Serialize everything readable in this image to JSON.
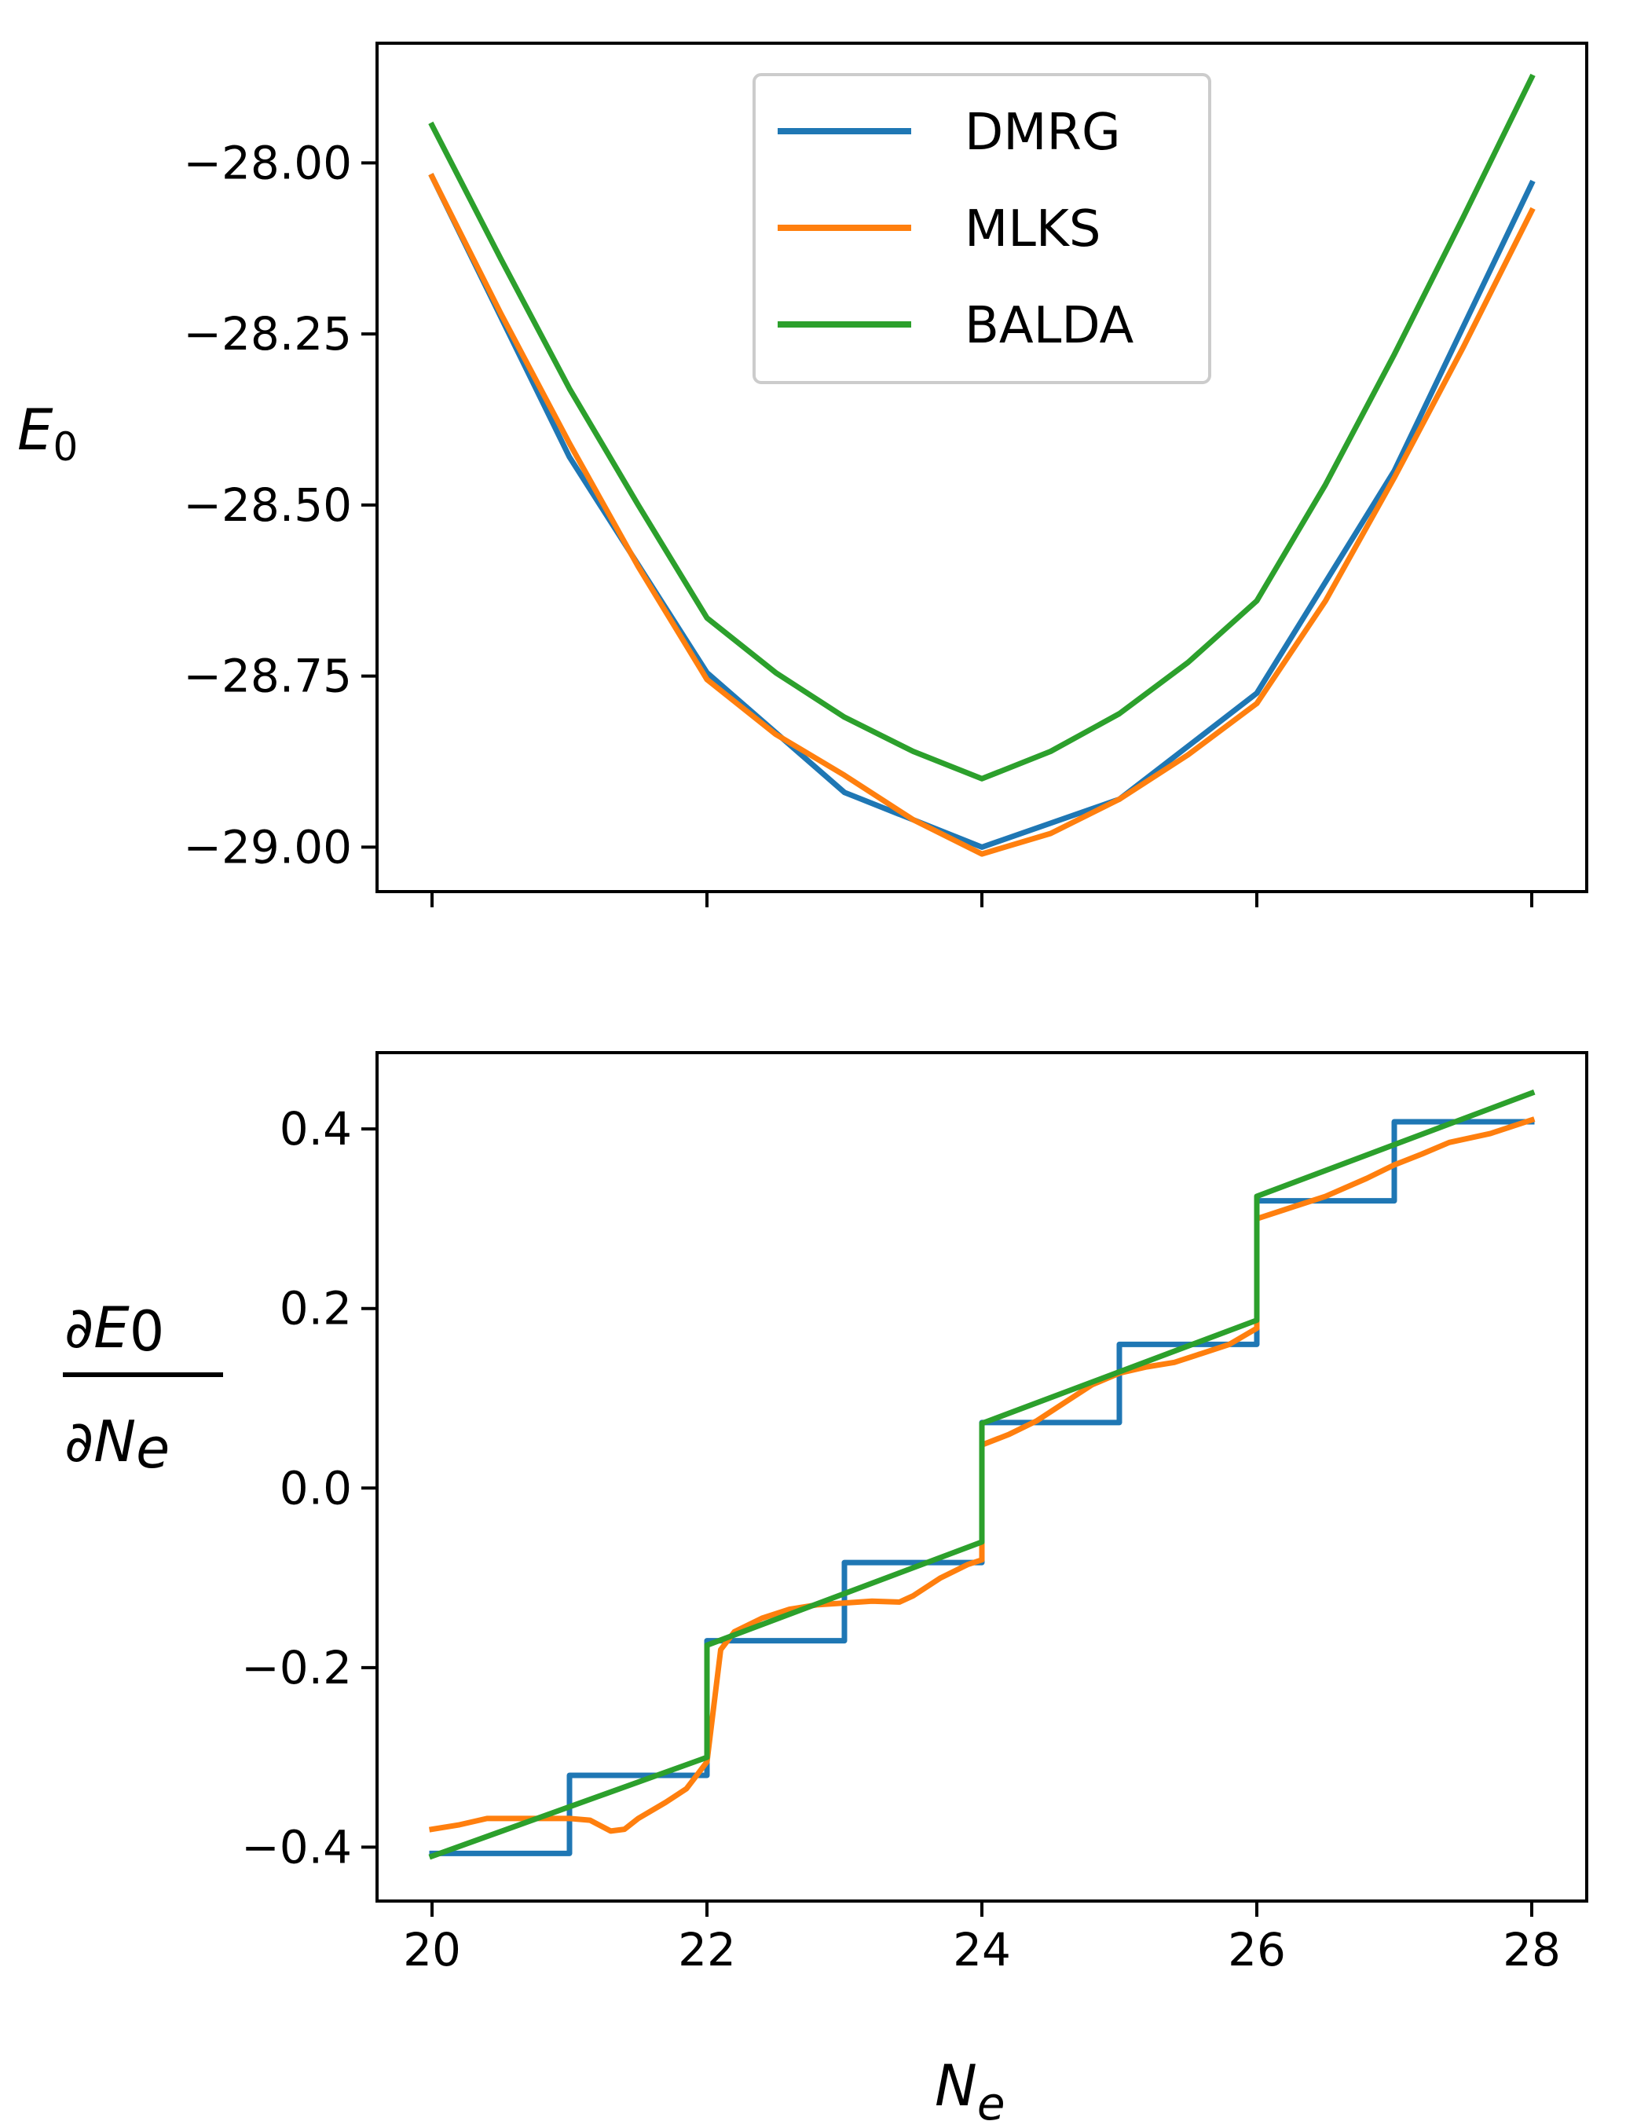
{
  "colors": {
    "DMRG": "#1f77b4",
    "MLKS": "#ff7f0e",
    "BALDA": "#2ca02c"
  },
  "chart_data": [
    {
      "type": "line",
      "panel": "top",
      "ylabel_main": "E",
      "ylabel_sub": "0",
      "xlim": [
        19.6,
        28.4
      ],
      "ylim": [
        -29.065,
        -27.825
      ],
      "xticks": [
        20,
        22,
        24,
        26,
        28
      ],
      "show_xtick_labels": false,
      "yticks": [
        -29.0,
        -28.75,
        -28.5,
        -28.25,
        -28.0
      ],
      "ytick_labels": [
        "−29.00",
        "−28.75",
        "−28.50",
        "−28.25",
        "−28.00"
      ],
      "legend": {
        "location": "upper center",
        "entries": [
          "DMRG",
          "MLKS",
          "BALDA"
        ]
      },
      "series": [
        {
          "name": "DMRG",
          "x": [
            20,
            21,
            22,
            23,
            24,
            25,
            26,
            27,
            28
          ],
          "values": [
            -28.02,
            -28.43,
            -28.745,
            -28.92,
            -29.0,
            -28.93,
            -28.775,
            -28.45,
            -28.03
          ]
        },
        {
          "name": "MLKS",
          "x": [
            20,
            20.5,
            21,
            21.5,
            22,
            22.5,
            23,
            23.5,
            24,
            24.5,
            25,
            25.5,
            26,
            26.5,
            27,
            27.5,
            28
          ],
          "values": [
            -28.02,
            -28.22,
            -28.41,
            -28.59,
            -28.755,
            -28.835,
            -28.895,
            -28.96,
            -29.01,
            -28.98,
            -28.93,
            -28.865,
            -28.79,
            -28.64,
            -28.46,
            -28.27,
            -28.07
          ]
        },
        {
          "name": "BALDA",
          "x": [
            20,
            20.5,
            21,
            21.5,
            22,
            22.5,
            23,
            23.5,
            24,
            24.5,
            25,
            25.5,
            26,
            26.5,
            27,
            27.5,
            28
          ],
          "values": [
            -27.945,
            -28.14,
            -28.33,
            -28.5,
            -28.665,
            -28.745,
            -28.81,
            -28.86,
            -28.9,
            -28.86,
            -28.805,
            -28.73,
            -28.64,
            -28.47,
            -28.28,
            -28.08,
            -27.875
          ]
        }
      ]
    },
    {
      "type": "line",
      "panel": "bottom",
      "ylabel_num": "∂E",
      "ylabel_num_sub": "0",
      "ylabel_den": "∂N",
      "ylabel_den_sub": "e",
      "xlabel_main": "N",
      "xlabel_sub": "e",
      "xlim": [
        19.6,
        28.4
      ],
      "ylim": [
        -0.46,
        0.485
      ],
      "xticks": [
        20,
        22,
        24,
        26,
        28
      ],
      "xtick_labels": [
        "20",
        "22",
        "24",
        "26",
        "28"
      ],
      "yticks": [
        -0.4,
        -0.2,
        0.0,
        0.2,
        0.4
      ],
      "ytick_labels": [
        "−0.4",
        "−0.2",
        "0.0",
        "0.2",
        "0.4"
      ],
      "series": [
        {
          "name": "DMRG",
          "x": [
            20,
            21,
            21,
            22,
            22,
            23,
            23,
            24,
            24,
            25,
            25,
            26,
            26,
            27,
            27,
            28
          ],
          "values": [
            -0.407,
            -0.407,
            -0.32,
            -0.32,
            -0.17,
            -0.17,
            -0.083,
            -0.083,
            0.073,
            0.073,
            0.16,
            0.16,
            0.32,
            0.32,
            0.408,
            0.408
          ]
        },
        {
          "name": "MLKS",
          "x": [
            20,
            20.2,
            20.4,
            20.6,
            20.8,
            21.0,
            21.15,
            21.3,
            21.4,
            21.5,
            21.7,
            21.85,
            22.0,
            22.1,
            22.2,
            22.4,
            22.6,
            22.8,
            23.0,
            23.2,
            23.4,
            23.5,
            23.7,
            23.9,
            24.0,
            24.0,
            24.2,
            24.4,
            24.6,
            24.8,
            25.0,
            25.2,
            25.4,
            25.6,
            25.8,
            26.0,
            26.0,
            26.2,
            26.5,
            26.8,
            27.0,
            27.2,
            27.4,
            27.7,
            28.0
          ],
          "values": [
            -0.38,
            -0.375,
            -0.368,
            -0.368,
            -0.368,
            -0.368,
            -0.37,
            -0.382,
            -0.38,
            -0.368,
            -0.35,
            -0.335,
            -0.305,
            -0.18,
            -0.16,
            -0.145,
            -0.135,
            -0.13,
            -0.128,
            -0.126,
            -0.127,
            -0.12,
            -0.1,
            -0.085,
            -0.08,
            0.048,
            0.06,
            0.075,
            0.095,
            0.115,
            0.128,
            0.135,
            0.14,
            0.15,
            0.16,
            0.178,
            0.3,
            0.31,
            0.325,
            0.345,
            0.36,
            0.372,
            0.385,
            0.395,
            0.41
          ]
        },
        {
          "name": "BALDA",
          "x": [
            20,
            22,
            22,
            24,
            24,
            26,
            26,
            28
          ],
          "values": [
            -0.41,
            -0.3,
            -0.175,
            -0.06,
            0.072,
            0.187,
            0.325,
            0.44
          ]
        }
      ]
    }
  ]
}
